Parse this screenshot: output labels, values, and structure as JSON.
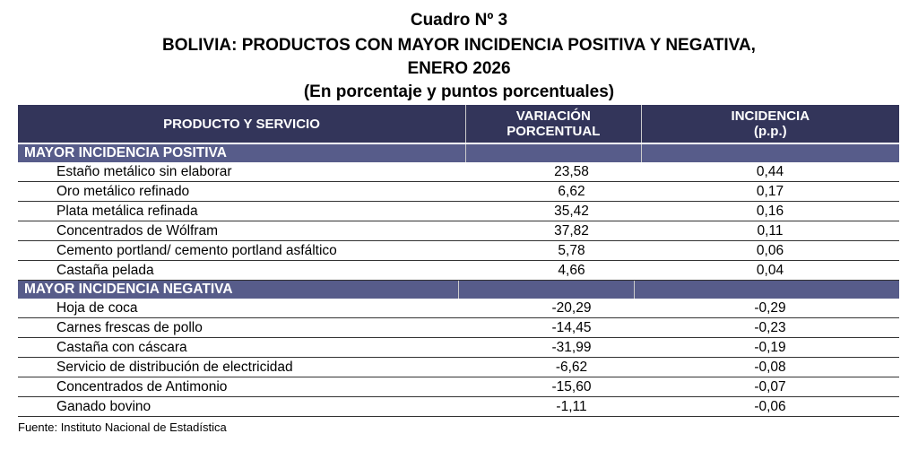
{
  "title": {
    "line1": "Cuadro Nº 3",
    "line2": "BOLIVIA: PRODUCTOS CON MAYOR INCIDENCIA POSITIVA Y NEGATIVA,",
    "line3": "ENERO 2026",
    "line4": "(En porcentaje y puntos porcentuales)"
  },
  "headers": {
    "product": "PRODUCTO Y SERVICIO",
    "variation": "VARIACIÓN PORCENTUAL",
    "incidence": "INCIDENCIA (p.p.)"
  },
  "positive": {
    "label": "MAYOR INCIDENCIA POSITIVA",
    "rows": [
      {
        "name": "Estaño metálico sin elaborar",
        "var": "23,58",
        "inc": "0,44"
      },
      {
        "name": "Oro metálico refinado",
        "var": "6,62",
        "inc": "0,17"
      },
      {
        "name": "Plata metálica refinada",
        "var": "35,42",
        "inc": "0,16"
      },
      {
        "name": "Concentrados de Wólfram",
        "var": "37,82",
        "inc": "0,11"
      },
      {
        "name": "Cemento portland/ cemento portland asfáltico",
        "var": "5,78",
        "inc": "0,06"
      },
      {
        "name": "Castaña pelada",
        "var": "4,66",
        "inc": "0,04"
      }
    ]
  },
  "negative": {
    "label": "MAYOR INCIDENCIA NEGATIVA",
    "rows": [
      {
        "name": "Hoja de coca",
        "var": "-20,29",
        "inc": "-0,29"
      },
      {
        "name": "Carnes frescas de pollo",
        "var": "-14,45",
        "inc": "-0,23"
      },
      {
        "name": "Castaña con cáscara",
        "var": "-31,99",
        "inc": "-0,19"
      },
      {
        "name": "Servicio de distribución de electricidad",
        "var": "-6,62",
        "inc": "-0,08"
      },
      {
        "name": "Concentrados de Antimonio",
        "var": "-15,60",
        "inc": "-0,07"
      },
      {
        "name": "Ganado bovino",
        "var": "-1,11",
        "inc": "-0,06"
      }
    ]
  },
  "footer": "Fuente: Instituto Nacional de Estadística"
}
